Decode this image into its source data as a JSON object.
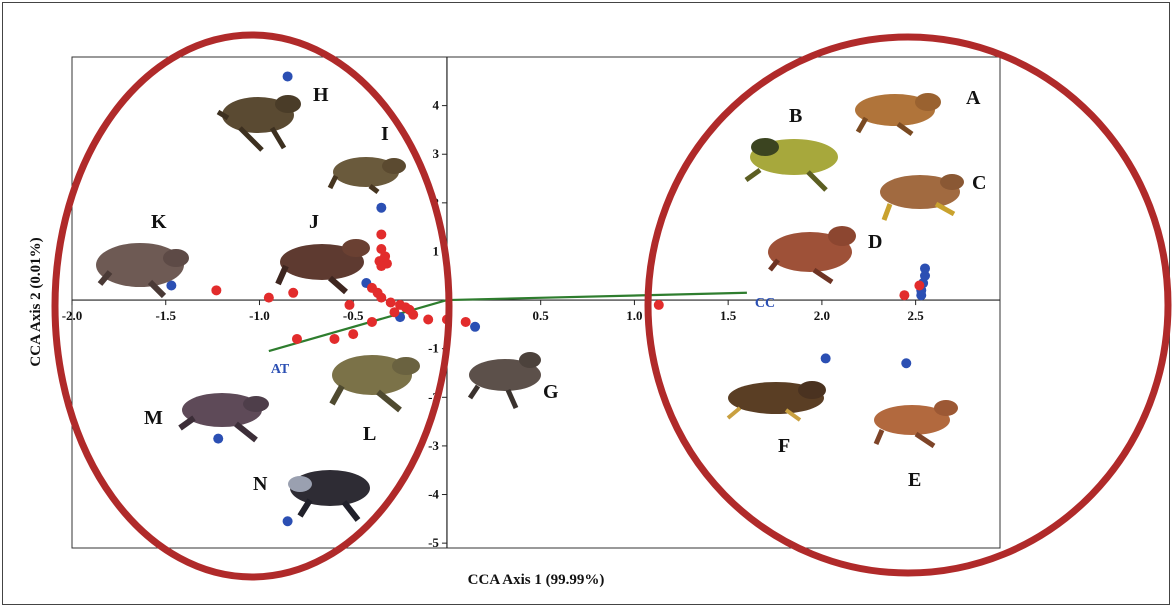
{
  "chart_data": {
    "type": "scatter",
    "xlabel": "CCA Axis 1 (99.99%)",
    "ylabel": "CCA Axis 2 (0.01%)",
    "xlim": [
      -2.0,
      2.95
    ],
    "ylim": [
      -5.1,
      5.0
    ],
    "x_ticks": [
      {
        "v": -2.0,
        "label": "-2.0"
      },
      {
        "v": -1.5,
        "label": "-1.5"
      },
      {
        "v": -1.0,
        "label": "-1.0"
      },
      {
        "v": -0.5,
        "label": "-0.5"
      },
      {
        "v": 0.5,
        "label": "0.5"
      },
      {
        "v": 1.0,
        "label": "1.0"
      },
      {
        "v": 1.5,
        "label": "1.5"
      },
      {
        "v": 2.0,
        "label": "2.0"
      },
      {
        "v": 2.5,
        "label": "2.5"
      }
    ],
    "y_ticks": [
      {
        "v": 4,
        "label": "4"
      },
      {
        "v": 3,
        "label": "3"
      },
      {
        "v": 2,
        "label": "2"
      },
      {
        "v": 1,
        "label": "1"
      },
      {
        "v": -1,
        "label": "-1"
      },
      {
        "v": -2,
        "label": "-2"
      },
      {
        "v": -3,
        "label": "-3"
      },
      {
        "v": -4,
        "label": "-4"
      },
      {
        "v": -5,
        "label": "-5"
      }
    ],
    "series": [
      {
        "color": "#2b4fb3",
        "points": [
          [
            -0.85,
            4.6
          ],
          [
            -0.35,
            1.9
          ],
          [
            -1.47,
            0.3
          ],
          [
            -0.43,
            0.35
          ],
          [
            -0.25,
            -0.35
          ],
          [
            0.15,
            -0.55
          ],
          [
            -1.22,
            -2.85
          ],
          [
            -0.85,
            -4.55
          ],
          [
            2.02,
            -1.2
          ],
          [
            2.45,
            -1.3
          ],
          [
            2.53,
            0.1
          ],
          [
            2.53,
            0.2
          ],
          [
            2.54,
            0.35
          ],
          [
            2.55,
            0.5
          ],
          [
            2.55,
            0.65
          ]
        ]
      },
      {
        "color": "#e22c2c",
        "points": [
          [
            -1.23,
            0.2
          ],
          [
            -0.95,
            0.05
          ],
          [
            -0.82,
            0.15
          ],
          [
            -0.35,
            1.35
          ],
          [
            -0.35,
            1.05
          ],
          [
            -0.33,
            0.9
          ],
          [
            -0.36,
            0.8
          ],
          [
            -0.32,
            0.75
          ],
          [
            -0.35,
            0.7
          ],
          [
            -0.4,
            0.25
          ],
          [
            -0.37,
            0.15
          ],
          [
            -0.35,
            0.05
          ],
          [
            -0.3,
            -0.05
          ],
          [
            -0.25,
            -0.1
          ],
          [
            -0.22,
            -0.15
          ],
          [
            -0.2,
            -0.2
          ],
          [
            -0.28,
            -0.25
          ],
          [
            -0.18,
            -0.3
          ],
          [
            -0.52,
            -0.1
          ],
          [
            -0.4,
            -0.45
          ],
          [
            -0.5,
            -0.7
          ],
          [
            -0.6,
            -0.8
          ],
          [
            -0.8,
            -0.8
          ],
          [
            -0.1,
            -0.4
          ],
          [
            0.0,
            -0.4
          ],
          [
            0.1,
            -0.45
          ],
          [
            1.13,
            -0.1
          ],
          [
            2.44,
            0.1
          ],
          [
            2.52,
            0.3
          ]
        ]
      }
    ],
    "vectors": [
      {
        "label": "CC",
        "end": [
          1.6,
          0.15
        ]
      },
      {
        "label": "AT",
        "end": [
          -0.95,
          -1.05
        ]
      }
    ],
    "species_labels": [
      "A",
      "B",
      "C",
      "D",
      "E",
      "F",
      "G",
      "H",
      "I",
      "J",
      "K",
      "L",
      "M",
      "N"
    ],
    "grid": false,
    "legend": "none",
    "colors": {
      "circle": "#b02a2a",
      "vector": "#2e7d2e",
      "vector_label": "#2b4fb3"
    }
  }
}
